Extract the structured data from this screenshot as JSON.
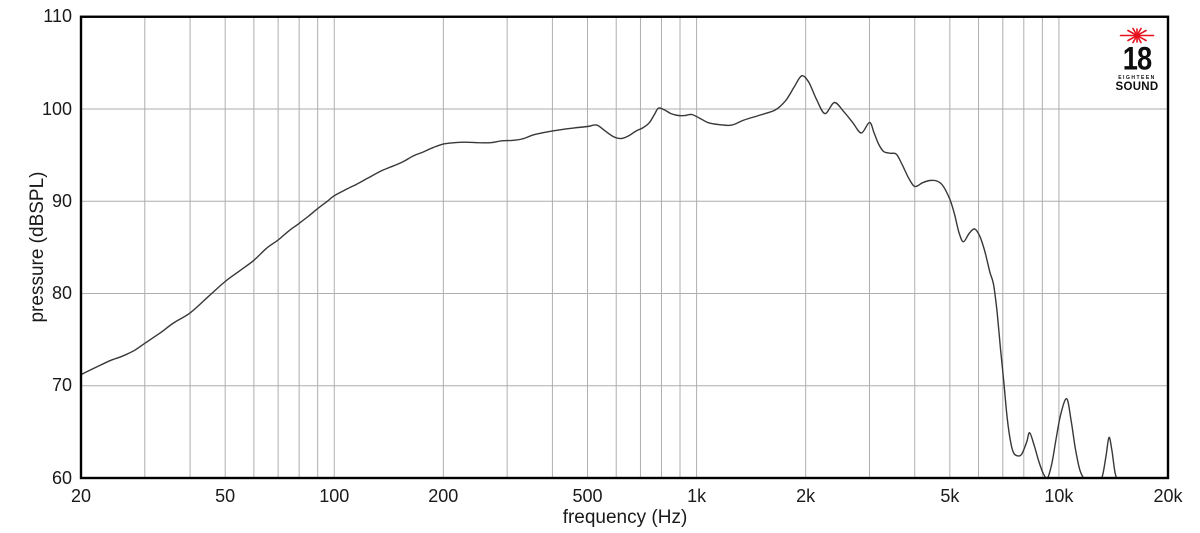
{
  "page": {
    "background": "#ffffff"
  },
  "chart_data": {
    "type": "line",
    "title": "",
    "xlabel": "frequency (Hz)",
    "ylabel": "pressure (dBSPL)",
    "x_scale": "log",
    "xlim": [
      20,
      20000
    ],
    "ylim": [
      60,
      110
    ],
    "grid": "on",
    "grid_color": "#aeaeae",
    "frame_color": "#000000",
    "curve_color": "#383838",
    "x_ticks": [
      {
        "value": 20,
        "label": "20"
      },
      {
        "value": 50,
        "label": "50"
      },
      {
        "value": 100,
        "label": "100"
      },
      {
        "value": 200,
        "label": "200"
      },
      {
        "value": 500,
        "label": "500"
      },
      {
        "value": 1000,
        "label": "1k"
      },
      {
        "value": 2000,
        "label": "2k"
      },
      {
        "value": 5000,
        "label": "5k"
      },
      {
        "value": 10000,
        "label": "10k"
      },
      {
        "value": 20000,
        "label": "20k"
      }
    ],
    "y_ticks": [
      {
        "value": 110,
        "label": "110"
      },
      {
        "value": 100,
        "label": "100"
      },
      {
        "value": 90,
        "label": "90"
      },
      {
        "value": 80,
        "label": "80"
      },
      {
        "value": 70,
        "label": "70"
      },
      {
        "value": 60,
        "label": "60"
      }
    ],
    "series": [
      {
        "points": [
          [
            20,
            71.2
          ],
          [
            22,
            72.0
          ],
          [
            24,
            72.7
          ],
          [
            26,
            73.2
          ],
          [
            28,
            73.8
          ],
          [
            30,
            74.6
          ],
          [
            33,
            75.7
          ],
          [
            36,
            76.8
          ],
          [
            40,
            77.9
          ],
          [
            45,
            79.7
          ],
          [
            50,
            81.3
          ],
          [
            55,
            82.5
          ],
          [
            60,
            83.6
          ],
          [
            65,
            84.9
          ],
          [
            70,
            85.8
          ],
          [
            75,
            86.8
          ],
          [
            80,
            87.6
          ],
          [
            85,
            88.4
          ],
          [
            90,
            89.2
          ],
          [
            95,
            89.9
          ],
          [
            100,
            90.6
          ],
          [
            108,
            91.3
          ],
          [
            116,
            91.9
          ],
          [
            125,
            92.6
          ],
          [
            135,
            93.3
          ],
          [
            145,
            93.8
          ],
          [
            155,
            94.3
          ],
          [
            165,
            94.9
          ],
          [
            175,
            95.3
          ],
          [
            187,
            95.8
          ],
          [
            200,
            96.2
          ],
          [
            215,
            96.35
          ],
          [
            230,
            96.4
          ],
          [
            250,
            96.35
          ],
          [
            270,
            96.35
          ],
          [
            290,
            96.55
          ],
          [
            310,
            96.6
          ],
          [
            330,
            96.75
          ],
          [
            355,
            97.2
          ],
          [
            385,
            97.5
          ],
          [
            420,
            97.75
          ],
          [
            460,
            97.95
          ],
          [
            500,
            98.1
          ],
          [
            530,
            98.25
          ],
          [
            560,
            97.6
          ],
          [
            590,
            97.0
          ],
          [
            620,
            96.8
          ],
          [
            650,
            97.1
          ],
          [
            680,
            97.6
          ],
          [
            710,
            97.95
          ],
          [
            740,
            98.5
          ],
          [
            765,
            99.4
          ],
          [
            785,
            100.1
          ],
          [
            815,
            99.9
          ],
          [
            850,
            99.5
          ],
          [
            890,
            99.3
          ],
          [
            930,
            99.3
          ],
          [
            970,
            99.4
          ],
          [
            1020,
            99.0
          ],
          [
            1080,
            98.5
          ],
          [
            1160,
            98.3
          ],
          [
            1250,
            98.25
          ],
          [
            1350,
            98.8
          ],
          [
            1500,
            99.35
          ],
          [
            1650,
            99.9
          ],
          [
            1760,
            100.9
          ],
          [
            1860,
            102.4
          ],
          [
            1950,
            103.6
          ],
          [
            2040,
            102.9
          ],
          [
            2140,
            101.1
          ],
          [
            2260,
            99.5
          ],
          [
            2400,
            100.7
          ],
          [
            2550,
            99.7
          ],
          [
            2700,
            98.5
          ],
          [
            2850,
            97.4
          ],
          [
            3000,
            98.55
          ],
          [
            3090,
            97.4
          ],
          [
            3180,
            96.2
          ],
          [
            3280,
            95.4
          ],
          [
            3420,
            95.2
          ],
          [
            3560,
            95.1
          ],
          [
            3700,
            93.9
          ],
          [
            3850,
            92.5
          ],
          [
            4000,
            91.6
          ],
          [
            4200,
            92.0
          ],
          [
            4400,
            92.25
          ],
          [
            4600,
            92.2
          ],
          [
            4780,
            91.7
          ],
          [
            5000,
            90.2
          ],
          [
            5150,
            88.6
          ],
          [
            5300,
            86.6
          ],
          [
            5450,
            85.6
          ],
          [
            5650,
            86.5
          ],
          [
            5850,
            87.0
          ],
          [
            6050,
            86.2
          ],
          [
            6250,
            84.5
          ],
          [
            6450,
            82.3
          ],
          [
            6600,
            81.0
          ],
          [
            6750,
            78.0
          ],
          [
            6900,
            74.0
          ],
          [
            7050,
            70.3
          ],
          [
            7200,
            66.5
          ],
          [
            7350,
            64.0
          ],
          [
            7500,
            62.7
          ],
          [
            7700,
            62.4
          ],
          [
            7900,
            62.6
          ],
          [
            8150,
            63.9
          ],
          [
            8300,
            64.9
          ],
          [
            8550,
            63.5
          ],
          [
            8800,
            61.8
          ],
          [
            9050,
            60.5
          ],
          [
            9300,
            60.0
          ],
          [
            9550,
            61.5
          ],
          [
            9800,
            64.0
          ],
          [
            10100,
            66.8
          ],
          [
            10500,
            68.6
          ],
          [
            10800,
            66.3
          ],
          [
            11100,
            63.2
          ],
          [
            11400,
            61.0
          ],
          [
            11700,
            60.0
          ],
          [
            12000,
            59.8
          ],
          [
            12900,
            59.8
          ],
          [
            13200,
            60.3
          ],
          [
            13500,
            62.5
          ],
          [
            13750,
            64.4
          ],
          [
            14000,
            63.0
          ],
          [
            14300,
            60.5
          ],
          [
            14600,
            59.8
          ],
          [
            15200,
            59.6
          ],
          [
            20000,
            59.6
          ]
        ]
      }
    ]
  },
  "logo": {
    "number": "18",
    "brand_top": "EIGHTEEN",
    "brand_bottom": "SOUND",
    "star_color": "#e8101c",
    "text_color": "#0d0d0d"
  }
}
